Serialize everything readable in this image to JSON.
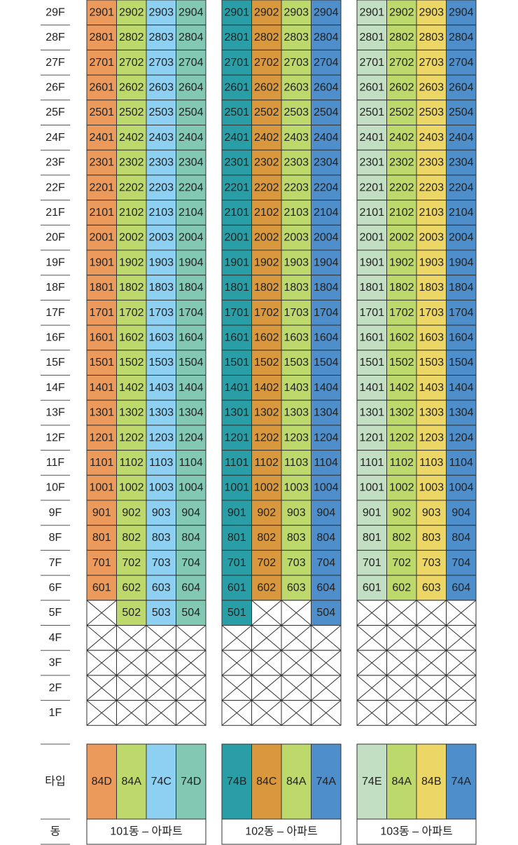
{
  "floors": [
    "29F",
    "28F",
    "27F",
    "26F",
    "25F",
    "24F",
    "23F",
    "22F",
    "21F",
    "20F",
    "19F",
    "18F",
    "17F",
    "16F",
    "15F",
    "14F",
    "13F",
    "12F",
    "11F",
    "10F",
    "9F",
    "8F",
    "7F",
    "6F",
    "5F",
    "4F",
    "3F",
    "2F",
    "1F"
  ],
  "row_labels": {
    "type": "타입",
    "building": "동"
  },
  "colors": {
    "orange": "#ec9a5c",
    "lime": "#bdd96c",
    "sky": "#8dd0f2",
    "mint": "#82c8b3",
    "teal": "#2a9ea6",
    "amber": "#d9973e",
    "blue": "#4d8ecb",
    "pale": "#c3dfc3",
    "yellow": "#ecd665",
    "line": "#333333",
    "empty": "#ffffff"
  },
  "buildings": [
    {
      "name": "101동 – 아파트",
      "types": [
        "84D",
        "84A",
        "74C",
        "74D"
      ],
      "colors": [
        "orange",
        "lime",
        "sky",
        "mint"
      ],
      "units_5f": [
        null,
        "502",
        "503",
        "504"
      ]
    },
    {
      "name": "102동 – 아파트",
      "types": [
        "74B",
        "84C",
        "84A",
        "74A"
      ],
      "colors": [
        "teal",
        "amber",
        "lime",
        "blue"
      ],
      "units_5f": [
        "501",
        null,
        null,
        "504"
      ]
    },
    {
      "name": "103동 – 아파트",
      "types": [
        "74E",
        "84A",
        "84B",
        "74A"
      ],
      "colors": [
        "pale",
        "lime",
        "yellow",
        "blue"
      ],
      "units_5f": [
        null,
        null,
        null,
        null
      ]
    }
  ],
  "top_floor": 29,
  "lowest_full_floor": 6
}
